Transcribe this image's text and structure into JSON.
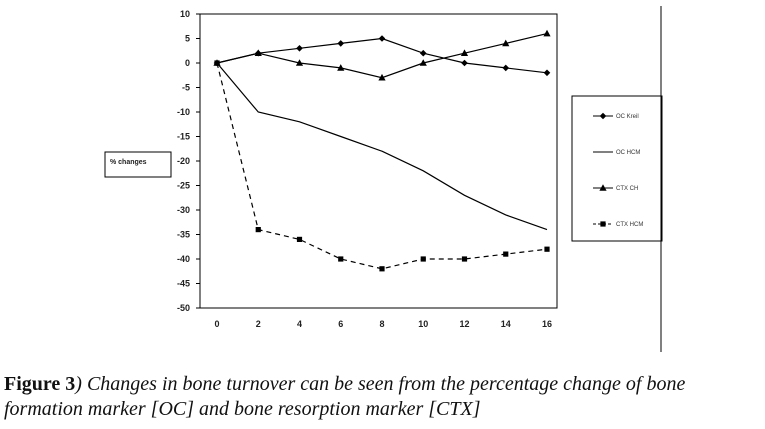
{
  "chart_data": {
    "type": "line",
    "ylabel": "% changes",
    "x": [
      0,
      2,
      4,
      6,
      8,
      10,
      12,
      14,
      16
    ],
    "ylim": [
      -50,
      10
    ],
    "yticks": [
      10,
      5,
      0,
      -5,
      -10,
      -15,
      -20,
      -25,
      -30,
      -35,
      -40,
      -45,
      -50
    ],
    "grid": false,
    "legend_position": "right",
    "series": [
      {
        "name": "OC Kreil",
        "marker": "diamond",
        "dash": "solid",
        "values": [
          0,
          2,
          3,
          4,
          5,
          2,
          0,
          -1,
          -2
        ]
      },
      {
        "name": "OC HCM",
        "marker": "none",
        "dash": "solid",
        "values": [
          0,
          -10,
          -12,
          -15,
          -18,
          -22,
          -27,
          -31,
          -34
        ]
      },
      {
        "name": "CTX CH",
        "marker": "triangle",
        "dash": "solid",
        "values": [
          0,
          2,
          0,
          -1,
          -3,
          0,
          2,
          4,
          6
        ]
      },
      {
        "name": "CTX HCM",
        "marker": "square",
        "dash": "dashed",
        "values": [
          0,
          -34,
          -36,
          -40,
          -42,
          -40,
          -40,
          -39,
          -38
        ]
      }
    ]
  },
  "caption": {
    "lead": "Figure 3",
    "text": ") Changes in bone turnover can be seen from the percentage change of bone formation marker [OC] and bone resorption marker [CTX]"
  }
}
